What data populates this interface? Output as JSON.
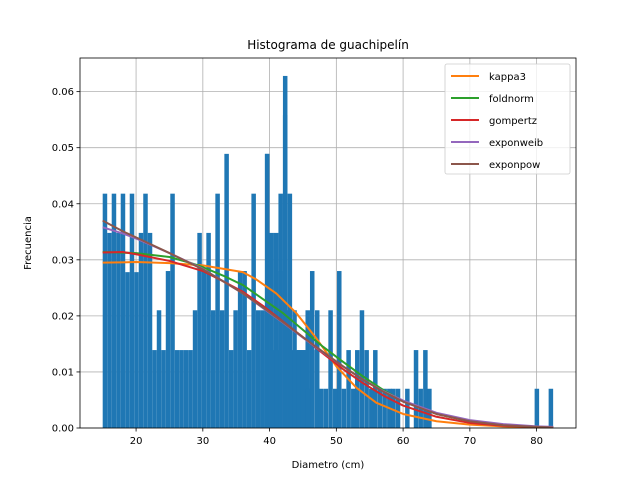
{
  "chart_data": {
    "type": "bar",
    "title": "Histograma de guachipelín",
    "xlabel": "Diametro (cm)",
    "ylabel": "Frecuencia",
    "xlim": [
      11.6,
      85.9
    ],
    "ylim": [
      0.0,
      0.066
    ],
    "xticks": [
      20,
      30,
      40,
      50,
      60,
      70,
      80
    ],
    "yticks": [
      0.0,
      0.01,
      0.02,
      0.03,
      0.04,
      0.05,
      0.06
    ],
    "xtick_labels": [
      "20",
      "30",
      "40",
      "50",
      "60",
      "70",
      "80"
    ],
    "ytick_labels": [
      "0.00",
      "0.01",
      "0.02",
      "0.03",
      "0.04",
      "0.05",
      "0.06"
    ],
    "grid": true,
    "legend_position": "upper right",
    "histogram": {
      "color": "#1f77b4",
      "bin_start": 15.0,
      "bin_width": 0.675,
      "values": [
        0.0418,
        0.0348,
        0.0418,
        0.0348,
        0.0418,
        0.0278,
        0.0418,
        0.0278,
        0.0348,
        0.0418,
        0.0348,
        0.0139,
        0.021,
        0.0139,
        0.028,
        0.0418,
        0.0139,
        0.0139,
        0.0139,
        0.0139,
        0.021,
        0.0348,
        0.028,
        0.0348,
        0.021,
        0.0418,
        0.021,
        0.0489,
        0.0139,
        0.021,
        0.028,
        0.028,
        0.0139,
        0.0418,
        0.021,
        0.021,
        0.0489,
        0.0348,
        0.0348,
        0.0418,
        0.0628,
        0.021,
        0.0139,
        0.0139,
        0.0139,
        0.021,
        0.028,
        0.0
      ]
    },
    "histogram_right_bins": {
      "x": [
        38.6,
        39.3,
        40.0,
        40.7,
        41.3,
        42.0,
        42.7,
        43.4,
        44.1,
        44.7,
        45.4,
        46.1,
        46.8,
        47.4,
        48.1,
        48.8,
        49.5,
        50.1,
        50.8,
        51.5,
        52.2,
        52.8,
        53.5,
        54.2,
        54.9,
        55.5,
        56.2,
        56.9,
        57.6,
        58.2,
        58.9,
        59.6,
        60.3,
        60.9,
        61.6,
        62.3,
        63.0,
        63.6,
        79.7,
        81.8
      ],
      "values": [
        0.0139,
        0.0489,
        0.0139,
        0.0139,
        0.028,
        0.0558,
        0.0418,
        0.021,
        0.0139,
        0.0139,
        0.007,
        0.0139,
        0.021,
        0.007,
        0.007,
        0.021,
        0.007,
        0.028,
        0.007,
        0.0139,
        0.007,
        0.0139,
        0.021,
        0.0139,
        0.007,
        0.0139,
        0.007,
        0.007,
        0.007,
        0.007,
        0.007,
        0.0,
        0.007,
        0.0,
        0.0139,
        0.007,
        0.0139,
        0.007,
        0.007,
        0.007
      ]
    },
    "series": [
      {
        "name": "kappa3",
        "color": "#ff7f0e",
        "x": [
          15,
          20,
          25,
          30,
          33,
          36,
          38,
          41,
          44,
          47,
          50,
          53,
          56,
          60,
          65,
          70,
          75,
          80,
          82.5
        ],
        "y": [
          0.0295,
          0.0296,
          0.0294,
          0.029,
          0.0284,
          0.0278,
          0.0265,
          0.024,
          0.0205,
          0.016,
          0.011,
          0.0072,
          0.0045,
          0.0025,
          0.0012,
          0.0006,
          0.0003,
          0.0001,
          0.0001
        ]
      },
      {
        "name": "foldnorm",
        "color": "#2ca02c",
        "x": [
          15,
          20,
          25,
          28,
          30,
          33,
          36,
          39,
          42,
          45,
          48,
          51,
          54,
          57,
          60,
          65,
          70,
          75,
          82.5
        ],
        "y": [
          0.0314,
          0.0312,
          0.0305,
          0.0295,
          0.0287,
          0.0272,
          0.0255,
          0.023,
          0.0205,
          0.0175,
          0.0145,
          0.0118,
          0.0092,
          0.0068,
          0.0048,
          0.0025,
          0.0012,
          0.0005,
          0.0001
        ]
      },
      {
        "name": "gompertz",
        "color": "#d62728",
        "x": [
          15,
          18,
          20,
          25,
          30,
          33,
          36,
          39,
          42,
          45,
          48,
          51,
          54,
          57,
          60,
          65,
          70,
          75,
          80,
          82.5
        ],
        "y": [
          0.0313,
          0.0314,
          0.031,
          0.0298,
          0.028,
          0.0262,
          0.0243,
          0.0218,
          0.019,
          0.0162,
          0.0133,
          0.0105,
          0.008,
          0.0058,
          0.004,
          0.002,
          0.0009,
          0.0004,
          0.0002,
          0.0001
        ]
      },
      {
        "name": "exponweib",
        "color": "#9467bd",
        "x": [
          15,
          18,
          20,
          25,
          30,
          33,
          36,
          39,
          42,
          45,
          48,
          51,
          54,
          57,
          60,
          65,
          70,
          75,
          80,
          82.5
        ],
        "y": [
          0.0358,
          0.0347,
          0.0338,
          0.0312,
          0.0284,
          0.0262,
          0.024,
          0.0214,
          0.0188,
          0.0161,
          0.0135,
          0.011,
          0.0086,
          0.0066,
          0.0049,
          0.0027,
          0.0014,
          0.0007,
          0.0003,
          0.0002
        ]
      },
      {
        "name": "exponpow",
        "color": "#8c564b",
        "x": [
          15,
          18,
          20,
          25,
          30,
          33,
          36,
          39,
          42,
          45,
          48,
          51,
          54,
          57,
          60,
          65,
          70,
          75,
          80,
          82.5
        ],
        "y": [
          0.037,
          0.0351,
          0.034,
          0.0312,
          0.0283,
          0.0262,
          0.024,
          0.0215,
          0.0189,
          0.0162,
          0.0136,
          0.011,
          0.0086,
          0.0065,
          0.0047,
          0.0025,
          0.0012,
          0.0005,
          0.0002,
          0.0001
        ]
      }
    ]
  }
}
